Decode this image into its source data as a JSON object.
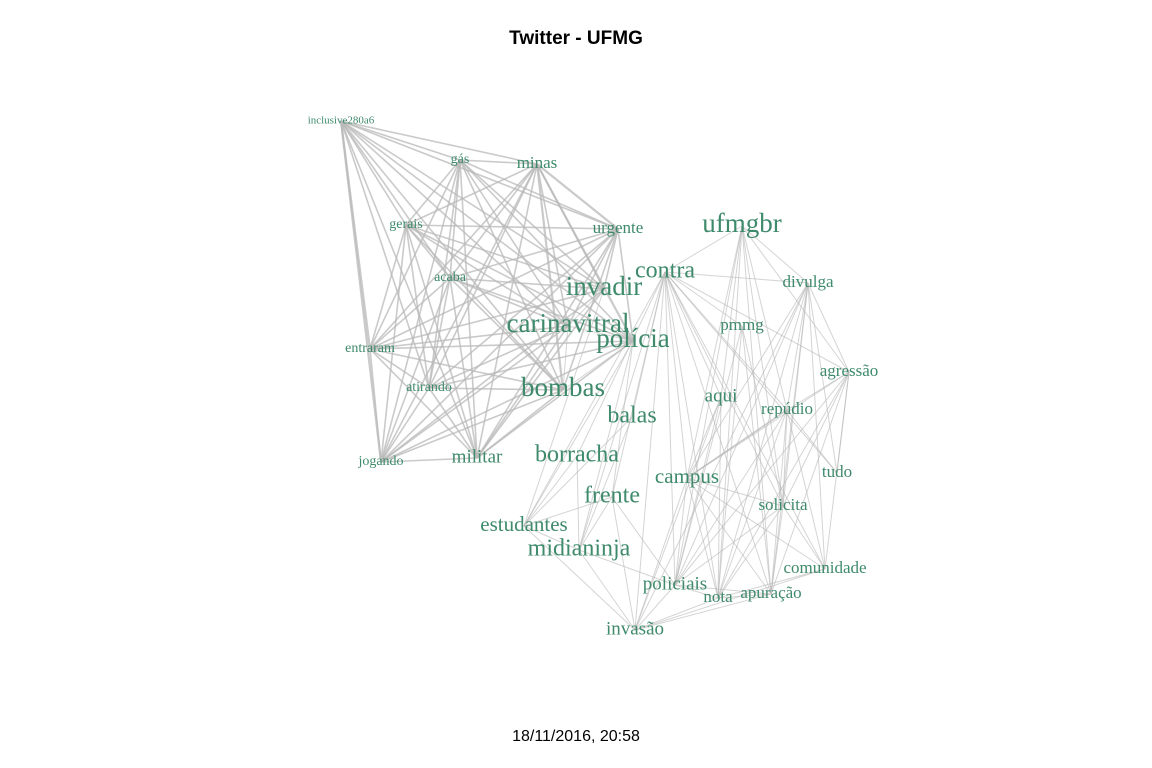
{
  "title": "Twitter - UFMG",
  "footer": "18/11/2016, 20:58",
  "colors": {
    "label": "#3e8a6b",
    "edge": "#b8b8b8",
    "background": "#ffffff"
  },
  "nodes": [
    {
      "id": "inclusive280a6",
      "label": "inclusive280a6",
      "weight": 1
    },
    {
      "id": "gas",
      "label": "gás",
      "weight": 2
    },
    {
      "id": "minas",
      "label": "minas",
      "weight": 3
    },
    {
      "id": "gerais",
      "label": "gerais",
      "weight": 2
    },
    {
      "id": "urgente",
      "label": "urgente",
      "weight": 3
    },
    {
      "id": "ufmgbr",
      "label": "ufmgbr",
      "weight": 7
    },
    {
      "id": "acaba",
      "label": "acaba",
      "weight": 2
    },
    {
      "id": "contra",
      "label": "contra",
      "weight": 6
    },
    {
      "id": "divulga",
      "label": "divulga",
      "weight": 3
    },
    {
      "id": "invadir",
      "label": "invadir",
      "weight": 7
    },
    {
      "id": "carinavitral",
      "label": "carinavitral",
      "weight": 7
    },
    {
      "id": "pmmg",
      "label": "pmmg",
      "weight": 3
    },
    {
      "id": "policia",
      "label": "polícia",
      "weight": 7
    },
    {
      "id": "entraram",
      "label": "entraram",
      "weight": 2
    },
    {
      "id": "agressao",
      "label": "agressão",
      "weight": 3
    },
    {
      "id": "atirando",
      "label": "atirando",
      "weight": 2
    },
    {
      "id": "bombas",
      "label": "bombas",
      "weight": 7
    },
    {
      "id": "aqui",
      "label": "aqui",
      "weight": 4
    },
    {
      "id": "repudio",
      "label": "repúdio",
      "weight": 3
    },
    {
      "id": "balas",
      "label": "balas",
      "weight": 6
    },
    {
      "id": "jogando",
      "label": "jogando",
      "weight": 2
    },
    {
      "id": "militar",
      "label": "militar",
      "weight": 4
    },
    {
      "id": "borracha",
      "label": "borracha",
      "weight": 6
    },
    {
      "id": "tudo",
      "label": "tudo",
      "weight": 3
    },
    {
      "id": "campus",
      "label": "campus",
      "weight": 5
    },
    {
      "id": "frente",
      "label": "frente",
      "weight": 6
    },
    {
      "id": "solicita",
      "label": "solicita",
      "weight": 3
    },
    {
      "id": "estudantes",
      "label": "estudantes",
      "weight": 5
    },
    {
      "id": "midianinja",
      "label": "midianinja",
      "weight": 6
    },
    {
      "id": "comunidade",
      "label": "comunidade",
      "weight": 3
    },
    {
      "id": "policiais",
      "label": "policiais",
      "weight": 4
    },
    {
      "id": "nota",
      "label": "nota",
      "weight": 3
    },
    {
      "id": "apuracao",
      "label": "apuração",
      "weight": 3
    },
    {
      "id": "invasao",
      "label": "invasão",
      "weight": 4
    }
  ],
  "edges": [
    [
      "inclusive280a6",
      "gas",
      2
    ],
    [
      "inclusive280a6",
      "minas",
      2
    ],
    [
      "inclusive280a6",
      "gerais",
      2
    ],
    [
      "inclusive280a6",
      "urgente",
      2
    ],
    [
      "inclusive280a6",
      "acaba",
      2
    ],
    [
      "inclusive280a6",
      "entraram",
      3
    ],
    [
      "inclusive280a6",
      "atirando",
      2
    ],
    [
      "inclusive280a6",
      "jogando",
      3
    ],
    [
      "inclusive280a6",
      "militar",
      2
    ],
    [
      "inclusive280a6",
      "bombas",
      2
    ],
    [
      "inclusive280a6",
      "carinavitral",
      2
    ],
    [
      "inclusive280a6",
      "policia",
      2
    ],
    [
      "inclusive280a6",
      "invadir",
      2
    ],
    [
      "gas",
      "minas",
      2
    ],
    [
      "gas",
      "gerais",
      2
    ],
    [
      "gas",
      "acaba",
      2
    ],
    [
      "gas",
      "entraram",
      2
    ],
    [
      "gas",
      "atirando",
      2
    ],
    [
      "gas",
      "jogando",
      2
    ],
    [
      "gas",
      "militar",
      2
    ],
    [
      "gas",
      "bombas",
      2
    ],
    [
      "gas",
      "carinavitral",
      2
    ],
    [
      "gas",
      "policia",
      2
    ],
    [
      "gas",
      "invadir",
      2
    ],
    [
      "gas",
      "urgente",
      2
    ],
    [
      "minas",
      "gerais",
      2
    ],
    [
      "minas",
      "urgente",
      3
    ],
    [
      "minas",
      "acaba",
      2
    ],
    [
      "minas",
      "entraram",
      2
    ],
    [
      "minas",
      "atirando",
      2
    ],
    [
      "minas",
      "jogando",
      2
    ],
    [
      "minas",
      "militar",
      2
    ],
    [
      "minas",
      "bombas",
      3
    ],
    [
      "minas",
      "carinavitral",
      2
    ],
    [
      "minas",
      "policia",
      3
    ],
    [
      "minas",
      "invadir",
      2
    ],
    [
      "gerais",
      "urgente",
      2
    ],
    [
      "gerais",
      "acaba",
      2
    ],
    [
      "gerais",
      "entraram",
      2
    ],
    [
      "gerais",
      "atirando",
      2
    ],
    [
      "gerais",
      "jogando",
      2
    ],
    [
      "gerais",
      "militar",
      2
    ],
    [
      "gerais",
      "bombas",
      2
    ],
    [
      "gerais",
      "carinavitral",
      2
    ],
    [
      "gerais",
      "policia",
      2
    ],
    [
      "gerais",
      "invadir",
      2
    ],
    [
      "urgente",
      "acaba",
      2
    ],
    [
      "urgente",
      "entraram",
      2
    ],
    [
      "urgente",
      "atirando",
      2
    ],
    [
      "urgente",
      "militar",
      2
    ],
    [
      "urgente",
      "bombas",
      2
    ],
    [
      "urgente",
      "carinavitral",
      2
    ],
    [
      "urgente",
      "policia",
      2
    ],
    [
      "urgente",
      "invadir",
      2
    ],
    [
      "urgente",
      "jogando",
      2
    ],
    [
      "acaba",
      "entraram",
      2
    ],
    [
      "acaba",
      "atirando",
      2
    ],
    [
      "acaba",
      "jogando",
      2
    ],
    [
      "acaba",
      "militar",
      2
    ],
    [
      "acaba",
      "bombas",
      2
    ],
    [
      "acaba",
      "carinavitral",
      2
    ],
    [
      "acaba",
      "policia",
      2
    ],
    [
      "acaba",
      "invadir",
      2
    ],
    [
      "entraram",
      "atirando",
      2
    ],
    [
      "entraram",
      "jogando",
      2
    ],
    [
      "entraram",
      "militar",
      2
    ],
    [
      "entraram",
      "bombas",
      2
    ],
    [
      "entraram",
      "carinavitral",
      2
    ],
    [
      "entraram",
      "policia",
      2
    ],
    [
      "entraram",
      "invadir",
      2
    ],
    [
      "atirando",
      "jogando",
      2
    ],
    [
      "atirando",
      "militar",
      2
    ],
    [
      "atirando",
      "bombas",
      2
    ],
    [
      "atirando",
      "carinavitral",
      2
    ],
    [
      "atirando",
      "policia",
      2
    ],
    [
      "jogando",
      "militar",
      2
    ],
    [
      "jogando",
      "bombas",
      2
    ],
    [
      "jogando",
      "carinavitral",
      2
    ],
    [
      "jogando",
      "policia",
      2
    ],
    [
      "jogando",
      "invadir",
      2
    ],
    [
      "militar",
      "bombas",
      2
    ],
    [
      "militar",
      "carinavitral",
      2
    ],
    [
      "militar",
      "policia",
      2
    ],
    [
      "militar",
      "invadir",
      2
    ],
    [
      "carinavitral",
      "policia",
      1
    ],
    [
      "carinavitral",
      "invadir",
      1
    ],
    [
      "carinavitral",
      "bombas",
      1
    ],
    [
      "bombas",
      "policia",
      1
    ],
    [
      "contra",
      "ufmgbr",
      1
    ],
    [
      "contra",
      "divulga",
      1
    ],
    [
      "contra",
      "aqui",
      1
    ],
    [
      "contra",
      "repudio",
      1
    ],
    [
      "contra",
      "campus",
      1
    ],
    [
      "contra",
      "solicita",
      1
    ],
    [
      "contra",
      "tudo",
      1
    ],
    [
      "contra",
      "policiais",
      1
    ],
    [
      "contra",
      "nota",
      1
    ],
    [
      "contra",
      "apuracao",
      1
    ],
    [
      "contra",
      "comunidade",
      1
    ],
    [
      "contra",
      "frente",
      1
    ],
    [
      "contra",
      "estudantes",
      1
    ],
    [
      "contra",
      "midianinja",
      1
    ],
    [
      "contra",
      "invasao",
      1
    ],
    [
      "contra",
      "agressao",
      1
    ],
    [
      "contra",
      "pmmg",
      1
    ],
    [
      "contra",
      "balas",
      1
    ],
    [
      "contra",
      "borracha",
      1
    ],
    [
      "ufmgbr",
      "divulga",
      1
    ],
    [
      "ufmgbr",
      "aqui",
      1
    ],
    [
      "ufmgbr",
      "repudio",
      1
    ],
    [
      "ufmgbr",
      "campus",
      1
    ],
    [
      "ufmgbr",
      "solicita",
      1
    ],
    [
      "ufmgbr",
      "nota",
      1
    ],
    [
      "ufmgbr",
      "apuracao",
      1
    ],
    [
      "ufmgbr",
      "policiais",
      1
    ],
    [
      "ufmgbr",
      "agressao",
      1
    ],
    [
      "divulga",
      "agressao",
      1
    ],
    [
      "divulga",
      "repudio",
      1
    ],
    [
      "divulga",
      "solicita",
      1
    ],
    [
      "divulga",
      "nota",
      1
    ],
    [
      "divulga",
      "apuracao",
      1
    ],
    [
      "divulga",
      "campus",
      1
    ],
    [
      "divulga",
      "policiais",
      1
    ],
    [
      "divulga",
      "comunidade",
      1
    ],
    [
      "divulga",
      "tudo",
      1
    ],
    [
      "divulga",
      "invasao",
      1
    ],
    [
      "agressao",
      "repudio",
      1
    ],
    [
      "agressao",
      "solicita",
      1
    ],
    [
      "agressao",
      "nota",
      1
    ],
    [
      "agressao",
      "apuracao",
      1
    ],
    [
      "agressao",
      "comunidade",
      1
    ],
    [
      "agressao",
      "campus",
      1
    ],
    [
      "agressao",
      "policiais",
      1
    ],
    [
      "agressao",
      "tudo",
      1
    ],
    [
      "repudio",
      "campus",
      2
    ],
    [
      "repudio",
      "solicita",
      1
    ],
    [
      "repudio",
      "nota",
      1
    ],
    [
      "repudio",
      "apuracao",
      1
    ],
    [
      "repudio",
      "policiais",
      1
    ],
    [
      "repudio",
      "comunidade",
      1
    ],
    [
      "repudio",
      "tudo",
      1
    ],
    [
      "campus",
      "policiais",
      1
    ],
    [
      "campus",
      "nota",
      1
    ],
    [
      "campus",
      "apuracao",
      1
    ],
    [
      "campus",
      "invasao",
      1
    ],
    [
      "campus",
      "solicita",
      1
    ],
    [
      "campus",
      "comunidade",
      1
    ],
    [
      "campus",
      "aqui",
      1
    ],
    [
      "solicita",
      "nota",
      1
    ],
    [
      "solicita",
      "apuracao",
      1
    ],
    [
      "solicita",
      "comunidade",
      1
    ],
    [
      "solicita",
      "policiais",
      1
    ],
    [
      "policiais",
      "nota",
      1
    ],
    [
      "policiais",
      "apuracao",
      1
    ],
    [
      "policiais",
      "invasao",
      1
    ],
    [
      "nota",
      "apuracao",
      1
    ],
    [
      "nota",
      "invasao",
      1
    ],
    [
      "apuracao",
      "invasao",
      1
    ],
    [
      "comunidade",
      "invasao",
      1
    ],
    [
      "comunidade",
      "nota",
      1
    ],
    [
      "pmmg",
      "nota",
      1
    ],
    [
      "pmmg",
      "policiais",
      1
    ],
    [
      "pmmg",
      "apuracao",
      1
    ],
    [
      "pmmg",
      "solicita",
      1
    ],
    [
      "aqui",
      "policiais",
      1
    ],
    [
      "aqui",
      "nota",
      1
    ],
    [
      "aqui",
      "invasao",
      1
    ],
    [
      "frente",
      "estudantes",
      1
    ],
    [
      "frente",
      "midianinja",
      1
    ],
    [
      "frente",
      "invasao",
      1
    ],
    [
      "frente",
      "policiais",
      1
    ],
    [
      "estudantes",
      "midianinja",
      1
    ],
    [
      "estudantes",
      "invasao",
      1
    ],
    [
      "midianinja",
      "invasao",
      1
    ],
    [
      "midianinja",
      "policiais",
      1
    ],
    [
      "borracha",
      "estudantes",
      1
    ],
    [
      "borracha",
      "midianinja",
      1
    ],
    [
      "balas",
      "estudantes",
      1
    ],
    [
      "balas",
      "midianinja",
      1
    ],
    [
      "policia",
      "estudantes",
      1
    ],
    [
      "policia",
      "midianinja",
      1
    ],
    [
      "policia",
      "frente",
      1
    ],
    [
      "invadir",
      "estudantes",
      1
    ]
  ]
}
